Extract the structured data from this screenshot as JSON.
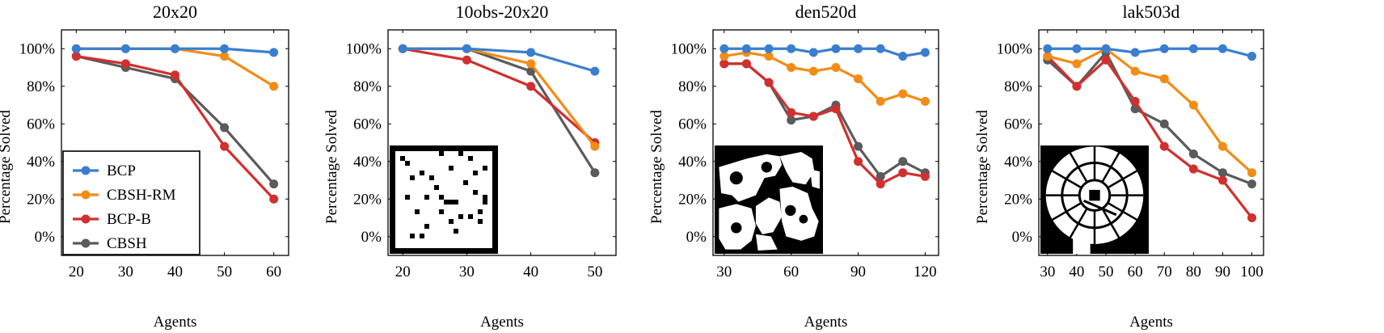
{
  "colors": {
    "BCP": "#3a7fcf",
    "CBSH-RM": "#f28c16",
    "BCP-B": "#d0302f",
    "CBSH": "#5b5b5b",
    "axis": "#000000",
    "map_bg": "#000000",
    "map_fg": "#ffffff"
  },
  "legend": {
    "entries": [
      "BCP",
      "CBSH-RM",
      "BCP-B",
      "CBSH"
    ],
    "placement": "bottom-left of first panel"
  },
  "chart_data": [
    {
      "type": "line",
      "title": "20x20",
      "xlabel": "Agents",
      "ylabel": "Percentage Solved",
      "x": [
        20,
        30,
        40,
        50,
        60
      ],
      "x_ticks": [
        "20",
        "30",
        "40",
        "50",
        "60"
      ],
      "xlim": [
        17,
        63
      ],
      "ylim": [
        -10,
        110
      ],
      "y_ticks": [
        "0%",
        "20%",
        "40%",
        "60%",
        "80%",
        "100%"
      ],
      "series": [
        {
          "name": "BCP",
          "values": [
            100,
            100,
            100,
            100,
            98
          ]
        },
        {
          "name": "CBSH-RM",
          "values": [
            100,
            100,
            100,
            96,
            80
          ]
        },
        {
          "name": "BCP-B",
          "values": [
            96,
            92,
            86,
            48,
            20
          ]
        },
        {
          "name": "CBSH",
          "values": [
            96,
            90,
            84,
            58,
            28
          ]
        }
      ],
      "has_legend": true
    },
    {
      "type": "line",
      "title": "10obs-20x20",
      "xlabel": "Agents",
      "ylabel": "Percentage Solved",
      "x": [
        20,
        30,
        40,
        50
      ],
      "x_ticks": [
        "20",
        "30",
        "40",
        "50"
      ],
      "xlim": [
        17.7,
        53.3
      ],
      "ylim": [
        -10,
        110
      ],
      "y_ticks": [
        "0%",
        "20%",
        "40%",
        "60%",
        "80%",
        "100%"
      ],
      "series": [
        {
          "name": "BCP",
          "values": [
            100,
            100,
            98,
            88
          ]
        },
        {
          "name": "CBSH-RM",
          "values": [
            100,
            100,
            92,
            48
          ]
        },
        {
          "name": "BCP-B",
          "values": [
            100,
            94,
            80,
            50
          ]
        },
        {
          "name": "CBSH",
          "values": [
            100,
            100,
            88,
            34
          ]
        }
      ],
      "map_inset": "10obs-20x20"
    },
    {
      "type": "line",
      "title": "den520d",
      "xlabel": "Agents",
      "ylabel": "Percentage Solved",
      "x": [
        30,
        40,
        50,
        60,
        70,
        80,
        90,
        100,
        110,
        120
      ],
      "x_ticks": [
        "30",
        "60",
        "90",
        "120"
      ],
      "xlim": [
        25,
        126
      ],
      "ylim": [
        -10,
        110
      ],
      "y_ticks": [
        "0%",
        "20%",
        "40%",
        "60%",
        "80%",
        "100%"
      ],
      "series": [
        {
          "name": "BCP",
          "values": [
            100,
            100,
            100,
            100,
            98,
            100,
            100,
            100,
            96,
            98
          ]
        },
        {
          "name": "CBSH-RM",
          "values": [
            96,
            98,
            96,
            90,
            88,
            90,
            84,
            72,
            76,
            72
          ]
        },
        {
          "name": "BCP-B",
          "values": [
            92,
            92,
            82,
            66,
            64,
            68,
            40,
            28,
            34,
            32
          ]
        },
        {
          "name": "CBSH",
          "values": [
            92,
            92,
            82,
            62,
            64,
            70,
            48,
            32,
            40,
            34
          ]
        }
      ],
      "map_inset": "den520d"
    },
    {
      "type": "line",
      "title": "lak503d",
      "xlabel": "Agents",
      "ylabel": "Percentage Solved",
      "x": [
        30,
        40,
        50,
        60,
        70,
        80,
        90,
        100
      ],
      "x_ticks": [
        "30",
        "40",
        "50",
        "60",
        "70",
        "80",
        "90",
        "100"
      ],
      "xlim": [
        27,
        104
      ],
      "ylim": [
        -10,
        110
      ],
      "y_ticks": [
        "0%",
        "20%",
        "40%",
        "60%",
        "80%",
        "100%"
      ],
      "series": [
        {
          "name": "BCP",
          "values": [
            100,
            100,
            100,
            98,
            100,
            100,
            100,
            96
          ]
        },
        {
          "name": "CBSH-RM",
          "values": [
            96,
            92,
            100,
            88,
            84,
            70,
            48,
            34
          ]
        },
        {
          "name": "BCP-B",
          "values": [
            96,
            80,
            94,
            72,
            48,
            36,
            30,
            10
          ]
        },
        {
          "name": "CBSH",
          "values": [
            94,
            80,
            98,
            68,
            60,
            44,
            34,
            28
          ]
        }
      ],
      "map_inset": "lak503d"
    }
  ]
}
